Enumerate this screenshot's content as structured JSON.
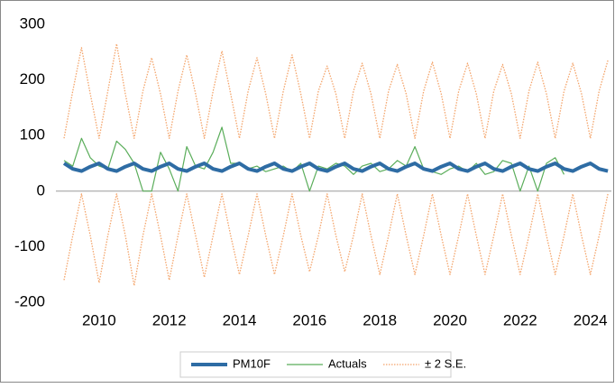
{
  "chart_data": {
    "type": "line",
    "x": [
      2009,
      2009.25,
      2009.5,
      2009.75,
      2010,
      2010.25,
      2010.5,
      2010.75,
      2011,
      2011.25,
      2011.5,
      2011.75,
      2012,
      2012.25,
      2012.5,
      2012.75,
      2013,
      2013.25,
      2013.5,
      2013.75,
      2014,
      2014.25,
      2014.5,
      2014.75,
      2015,
      2015.25,
      2015.5,
      2015.75,
      2016,
      2016.25,
      2016.5,
      2016.75,
      2017,
      2017.25,
      2017.5,
      2017.75,
      2018,
      2018.25,
      2018.5,
      2018.75,
      2019,
      2019.25,
      2019.5,
      2019.75,
      2020,
      2020.25,
      2020.5,
      2020.75,
      2021,
      2021.25,
      2021.5,
      2021.75,
      2022,
      2022.25,
      2022.5,
      2022.75,
      2023,
      2023.25,
      2023.5,
      2023.75,
      2024,
      2024.25,
      2024.5
    ],
    "series": [
      {
        "name": "± 2 S.E.",
        "color": "#f4a46a",
        "style": "dotted",
        "values": [
          95,
          180,
          258,
          175,
          95,
          180,
          265,
          175,
          95,
          180,
          240,
          175,
          95,
          180,
          245,
          175,
          95,
          180,
          252,
          175,
          95,
          180,
          240,
          175,
          95,
          180,
          245,
          175,
          95,
          180,
          225,
          175,
          95,
          180,
          230,
          175,
          95,
          180,
          228,
          175,
          95,
          180,
          232,
          175,
          95,
          180,
          230,
          175,
          95,
          180,
          228,
          175,
          95,
          180,
          232,
          175,
          95,
          180,
          230,
          175,
          95,
          180,
          235
        ]
      },
      {
        "color": "#f4a46a",
        "style": "dotted",
        "values": [
          -160,
          -80,
          -5,
          -80,
          -165,
          -80,
          -5,
          -80,
          -170,
          -80,
          -5,
          -80,
          -160,
          -80,
          -5,
          -80,
          -155,
          -80,
          -5,
          -80,
          -150,
          -80,
          -5,
          -80,
          -150,
          -80,
          -5,
          -80,
          -145,
          -80,
          -5,
          -80,
          -145,
          -80,
          -5,
          -80,
          -150,
          -80,
          -5,
          -80,
          -150,
          -80,
          -5,
          -80,
          -150,
          -80,
          -5,
          -80,
          -150,
          -80,
          -5,
          -80,
          -150,
          -80,
          -5,
          -80,
          -150,
          -80,
          -5,
          -80,
          -150,
          -80,
          -5
        ]
      },
      {
        "name": "Actuals",
        "color": "#5aad5a",
        "style": "solid",
        "values": [
          55,
          45,
          95,
          60,
          45,
          40,
          90,
          75,
          50,
          0,
          0,
          70,
          40,
          0,
          80,
          45,
          40,
          70,
          115,
          50,
          50,
          40,
          45,
          35,
          40,
          45,
          35,
          50,
          0,
          45,
          40,
          50,
          45,
          30,
          45,
          50,
          35,
          40,
          55,
          45,
          80,
          40,
          35,
          30,
          40,
          45,
          35,
          50,
          30,
          35,
          55,
          50,
          0,
          45,
          0,
          50,
          60,
          30,
          null,
          null,
          null,
          null,
          null
        ]
      },
      {
        "name": "PM10F",
        "color": "#2e6ca4",
        "style": "thick",
        "values": [
          50,
          40,
          36,
          44,
          50,
          40,
          36,
          44,
          50,
          40,
          36,
          44,
          50,
          40,
          36,
          44,
          50,
          40,
          36,
          44,
          50,
          40,
          36,
          44,
          50,
          40,
          36,
          44,
          50,
          40,
          36,
          44,
          50,
          40,
          36,
          44,
          50,
          40,
          36,
          44,
          50,
          40,
          36,
          44,
          50,
          40,
          36,
          44,
          50,
          40,
          36,
          44,
          50,
          40,
          36,
          44,
          50,
          40,
          36,
          44,
          50,
          40,
          36
        ]
      }
    ],
    "xlim": [
      2008.77,
      2024.6
    ],
    "xticks": [
      2010,
      2012,
      2014,
      2016,
      2018,
      2020,
      2022,
      2024
    ],
    "ylim": [
      -200,
      300
    ],
    "yticks": [
      300,
      200,
      100,
      0,
      -100,
      -200
    ],
    "legend": "bottom"
  }
}
